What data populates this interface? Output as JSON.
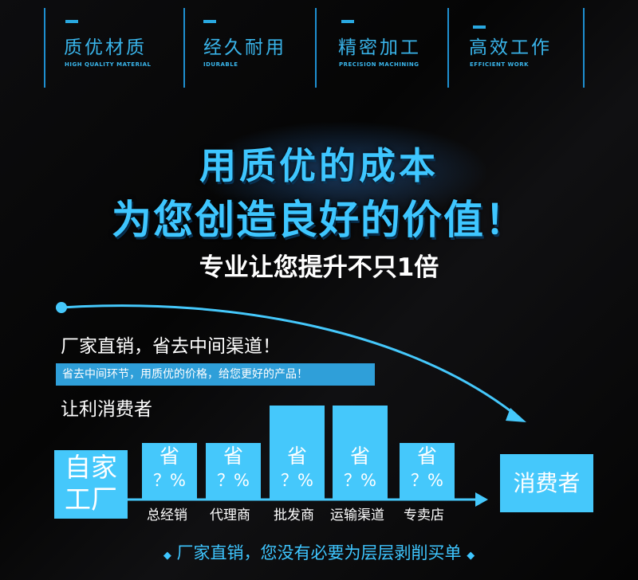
{
  "features": [
    {
      "title": "质优材质",
      "subtitle": "HIGH QUALITY MATERIAL"
    },
    {
      "title": "经久耐用",
      "subtitle": "IDURABLE"
    },
    {
      "title": "精密加工",
      "subtitle": "PRECISION MACHINING"
    },
    {
      "title": "高效工作",
      "subtitle": "EFFICIENT WORK"
    }
  ],
  "headline": {
    "line1": "用质优的成本",
    "line2": "为您创造良好的价值！",
    "line3": "专业让您提升不只1倍"
  },
  "section": {
    "heading": "厂家直销，省去中间渠道！",
    "banner": "省去中间环节，用质优的价格，给您更好的产品！",
    "subheading": "让利消费者"
  },
  "flow": {
    "source": "自家工厂",
    "target": "消费者",
    "save_label": "省",
    "pct_label": "？%",
    "stages": [
      "总经销",
      "代理商",
      "批发商",
      "运输渠道",
      "专卖店"
    ]
  },
  "footer": "厂家直销，您没有必要为层层剥削买单",
  "colors": {
    "accent": "#45c8fb",
    "title": "#3ec6ff"
  }
}
